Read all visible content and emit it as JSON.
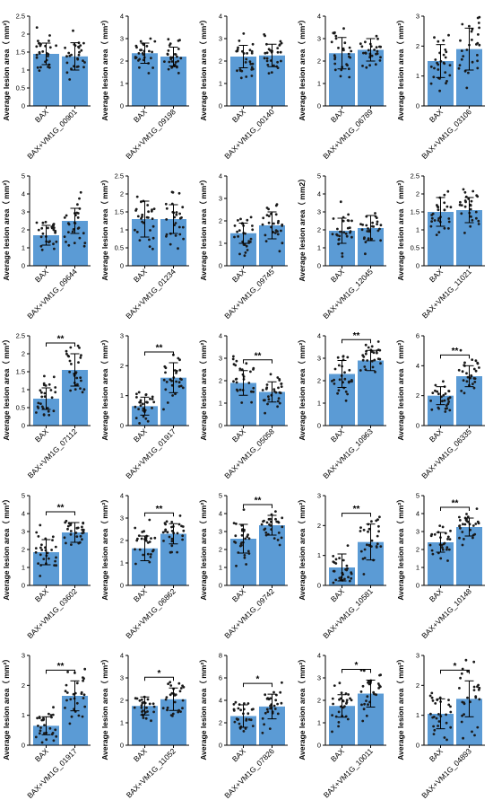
{
  "figure": {
    "ylabel_default": "Average lesion area（ mm²）",
    "bar_color": "#5b9bd5",
    "point_color": "#1a1a1a"
  },
  "chart_data": [
    {
      "type": "bar",
      "ylabel": "Average lesion area（ mm²）",
      "categories": [
        "BAX",
        "BAX+VM1G_00901"
      ],
      "values": [
        1.45,
        1.38
      ],
      "errors": [
        0.3,
        0.38
      ],
      "ylim": [
        0,
        2.5
      ],
      "yticks": [
        0,
        0.5,
        1,
        1.5,
        2,
        2.5
      ],
      "sig": ""
    },
    {
      "type": "bar",
      "ylabel": "Average lesion area（ mm²）",
      "categories": [
        "BAX",
        "BAX+VM1G_09198"
      ],
      "values": [
        2.35,
        2.2
      ],
      "errors": [
        0.45,
        0.42
      ],
      "ylim": [
        0,
        4
      ],
      "yticks": [
        0,
        1,
        2,
        3,
        4
      ],
      "sig": ""
    },
    {
      "type": "bar",
      "ylabel": "Average lesion area（ mm²）",
      "categories": [
        "BAX",
        "BAX+VM1G_00140"
      ],
      "values": [
        2.2,
        2.25
      ],
      "errors": [
        0.5,
        0.5
      ],
      "ylim": [
        0,
        4
      ],
      "yticks": [
        0,
        1,
        2,
        3,
        4
      ],
      "sig": ""
    },
    {
      "type": "bar",
      "ylabel": "Average lesion area（ mm²）",
      "categories": [
        "BAX",
        "BAX+VM1G_06789"
      ],
      "values": [
        2.35,
        2.5
      ],
      "errors": [
        0.7,
        0.5
      ],
      "ylim": [
        0,
        4
      ],
      "yticks": [
        0,
        1,
        2,
        3,
        4
      ],
      "sig": ""
    },
    {
      "type": "bar",
      "ylabel": "Average lesion area（ mm²）",
      "categories": [
        "BAX",
        "BAX+VM1G_03106"
      ],
      "values": [
        1.5,
        1.9
      ],
      "errors": [
        0.55,
        0.7
      ],
      "ylim": [
        0,
        3
      ],
      "yticks": [
        0,
        1,
        2,
        3
      ],
      "sig": ""
    },
    {
      "type": "bar",
      "ylabel": "Average lesion area（ mm²）",
      "categories": [
        "BAX",
        "BAX+VM1G_09644"
      ],
      "values": [
        1.7,
        2.5
      ],
      "errors": [
        0.55,
        0.7
      ],
      "ylim": [
        0,
        5
      ],
      "yticks": [
        0,
        1,
        2,
        3,
        4,
        5
      ],
      "sig": ""
    },
    {
      "type": "bar",
      "ylabel": "Average lesion area（ mm²）",
      "categories": [
        "BAX",
        "BAX+VM1G_01234"
      ],
      "values": [
        1.3,
        1.3
      ],
      "errors": [
        0.5,
        0.4
      ],
      "ylim": [
        0,
        2.5
      ],
      "yticks": [
        0,
        0.5,
        1,
        1.5,
        2,
        2.5
      ],
      "sig": ""
    },
    {
      "type": "bar",
      "ylabel": "Average lesion area（ mm²）",
      "categories": [
        "BAX",
        "BAX+VM1G_09745"
      ],
      "values": [
        1.45,
        1.8
      ],
      "errors": [
        0.45,
        0.6
      ],
      "ylim": [
        0,
        4
      ],
      "yticks": [
        0,
        1,
        2,
        3,
        4
      ],
      "sig": ""
    },
    {
      "type": "bar",
      "ylabel": "Average lesion area（ mm2）",
      "categories": [
        "BAX",
        "BAX+VM1G_12045"
      ],
      "values": [
        1.95,
        2.1
      ],
      "errors": [
        0.7,
        0.7
      ],
      "ylim": [
        0,
        5
      ],
      "yticks": [
        0,
        1,
        2,
        3,
        4,
        5
      ],
      "sig": ""
    },
    {
      "type": "bar",
      "ylabel": "Average lesion area（ mm²）",
      "categories": [
        "BAX",
        "BAX+VM1G_11021"
      ],
      "values": [
        1.5,
        1.55
      ],
      "errors": [
        0.4,
        0.35
      ],
      "ylim": [
        0,
        2.5
      ],
      "yticks": [
        0,
        0.5,
        1,
        1.5,
        2,
        2.5
      ],
      "sig": ""
    },
    {
      "type": "bar",
      "ylabel": "Average lesion area（ mm²）",
      "categories": [
        "BAX",
        "BAX+VM1G_07112"
      ],
      "values": [
        0.75,
        1.55
      ],
      "errors": [
        0.3,
        0.45
      ],
      "ylim": [
        0,
        2.5
      ],
      "yticks": [
        0,
        0.5,
        1,
        1.5,
        2,
        2.5
      ],
      "sig": "**"
    },
    {
      "type": "bar",
      "ylabel": "Average lesion area（ mm²）",
      "categories": [
        "BAX",
        "BAX+VM1G_01917"
      ],
      "values": [
        0.65,
        1.6
      ],
      "errors": [
        0.3,
        0.5
      ],
      "ylim": [
        0,
        3
      ],
      "yticks": [
        0,
        1,
        2,
        3
      ],
      "sig": "**"
    },
    {
      "type": "bar",
      "ylabel": "Average lesion area（ mm²）",
      "categories": [
        "BAX",
        "BAX+VM1G_05058"
      ],
      "values": [
        1.9,
        1.5
      ],
      "errors": [
        0.55,
        0.45
      ],
      "ylim": [
        0,
        4
      ],
      "yticks": [
        0,
        1,
        2,
        3,
        4
      ],
      "sig": "**"
    },
    {
      "type": "bar",
      "ylabel": "Average lesion area（ mm²）",
      "categories": [
        "BAX",
        "BAX+VM1G_10963"
      ],
      "values": [
        2.3,
        2.9
      ],
      "errors": [
        0.6,
        0.45
      ],
      "ylim": [
        0,
        4
      ],
      "yticks": [
        0,
        1,
        2,
        3,
        4
      ],
      "sig": "**"
    },
    {
      "type": "bar",
      "ylabel": "Average lesion area（ mm²）",
      "categories": [
        "BAX",
        "BAX+VM1G_06335"
      ],
      "values": [
        2.0,
        3.3
      ],
      "errors": [
        0.6,
        0.7
      ],
      "ylim": [
        0,
        6
      ],
      "yticks": [
        0,
        2,
        4,
        6
      ],
      "sig": "**"
    },
    {
      "type": "bar",
      "ylabel": "Average lesion area（ mm²）",
      "categories": [
        "BAX",
        "BAX+VM1G_03602"
      ],
      "values": [
        1.85,
        2.95
      ],
      "errors": [
        0.7,
        0.55
      ],
      "ylim": [
        0,
        5
      ],
      "yticks": [
        0,
        1,
        2,
        3,
        4,
        5
      ],
      "sig": "**"
    },
    {
      "type": "bar",
      "ylabel": "Average lesion area（ mm²）",
      "categories": [
        "BAX",
        "BAX+VM1G_06862"
      ],
      "values": [
        1.65,
        2.3
      ],
      "errors": [
        0.55,
        0.45
      ],
      "ylim": [
        0,
        4
      ],
      "yticks": [
        0,
        1,
        2,
        3,
        4
      ],
      "sig": "**"
    },
    {
      "type": "bar",
      "ylabel": "Average lesion area（ mm²）",
      "categories": [
        "BAX",
        "BAX+VM1G_09742"
      ],
      "values": [
        2.6,
        3.35
      ],
      "errors": [
        0.8,
        0.55
      ],
      "ylim": [
        0,
        5
      ],
      "yticks": [
        0,
        1,
        2,
        3,
        4,
        5
      ],
      "sig": "**"
    },
    {
      "type": "bar",
      "ylabel": "Average lesion area（ mm²）",
      "categories": [
        "BAX",
        "BAX+VM1G_10581"
      ],
      "values": [
        0.6,
        1.45
      ],
      "errors": [
        0.45,
        0.6
      ],
      "ylim": [
        0,
        3
      ],
      "yticks": [
        0,
        1,
        2,
        3
      ],
      "sig": "**"
    },
    {
      "type": "bar",
      "ylabel": "Average lesion area（ mm²）",
      "categories": [
        "BAX",
        "BAX+VM1G_10148"
      ],
      "values": [
        2.4,
        3.25
      ],
      "errors": [
        0.55,
        0.5
      ],
      "ylim": [
        0,
        5
      ],
      "yticks": [
        0,
        1,
        2,
        3,
        4,
        5
      ],
      "sig": "**"
    },
    {
      "type": "bar",
      "ylabel": "Average lesion area（ mm²）",
      "categories": [
        "BAX",
        "BAX+VM1G_01917"
      ],
      "values": [
        0.65,
        1.65
      ],
      "errors": [
        0.3,
        0.5
      ],
      "ylim": [
        0,
        3
      ],
      "yticks": [
        0,
        1,
        2,
        3
      ],
      "sig": "**"
    },
    {
      "type": "bar",
      "ylabel": "Average lesion area（ mm²）",
      "categories": [
        "BAX",
        "BAX+VM1G_11052"
      ],
      "values": [
        1.75,
        2.05
      ],
      "errors": [
        0.4,
        0.5
      ],
      "ylim": [
        0,
        4
      ],
      "yticks": [
        0,
        1,
        2,
        3,
        4
      ],
      "sig": "*"
    },
    {
      "type": "bar",
      "ylabel": "Average lesion area（ mm²）",
      "categories": [
        "BAX",
        "BAX+VM1G_07826"
      ],
      "values": [
        2.6,
        3.45
      ],
      "errors": [
        1.0,
        1.1
      ],
      "ylim": [
        0,
        8
      ],
      "yticks": [
        0,
        2,
        4,
        6,
        8
      ],
      "sig": "*"
    },
    {
      "type": "bar",
      "ylabel": "Average lesion area（ mm²）",
      "categories": [
        "BAX",
        "BAX+VM1G_10011"
      ],
      "values": [
        1.75,
        2.3
      ],
      "errors": [
        0.5,
        0.6
      ],
      "ylim": [
        0,
        4
      ],
      "yticks": [
        0,
        1,
        2,
        3,
        4
      ],
      "sig": "*"
    },
    {
      "type": "bar",
      "ylabel": "Average lesion area（ mm²）",
      "categories": [
        "BAX",
        "BAX+VM1G_04893"
      ],
      "values": [
        1.05,
        1.55
      ],
      "errors": [
        0.5,
        0.6
      ],
      "ylim": [
        0,
        3
      ],
      "yticks": [
        0,
        1,
        2,
        3
      ],
      "sig": "*"
    }
  ]
}
